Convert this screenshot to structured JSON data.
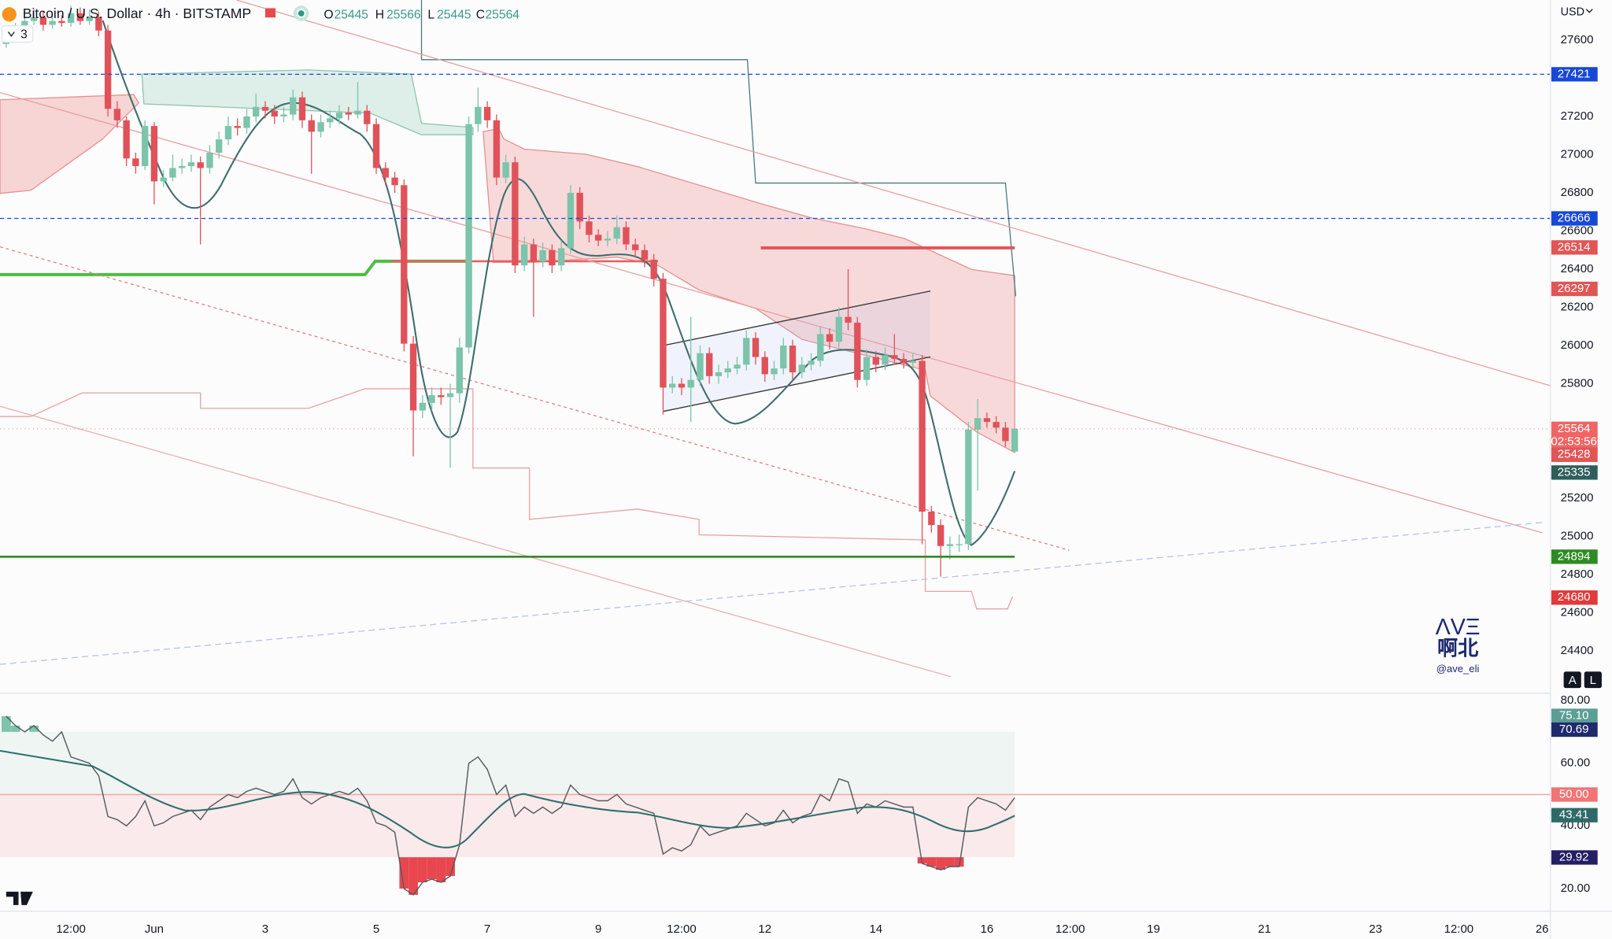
{
  "chart_data": [
    {
      "type": "candlestick",
      "title": "Bitcoin / U.S. Dollar · 4h · BITSTAMP",
      "legend": {
        "o_label": "O",
        "o": 25445,
        "h_label": "H",
        "h": 25566,
        "l_label": "L",
        "l": 25445,
        "c_label": "C",
        "c": 25564
      },
      "indicator_count": "3",
      "currency": "USD",
      "watermark": {
        "logo": "ΛVΞ",
        "name": "啊北",
        "handle": "@ave_eli"
      },
      "buttons": [
        "A",
        "L"
      ],
      "up_color": "#7cc4ab",
      "down_color": "#e0525a",
      "grid": false,
      "xlim": [
        -0.667,
        166.89
      ],
      "xticks": [
        {
          "value": 7,
          "label": "12:00"
        },
        {
          "value": 16,
          "label": "Jun"
        },
        {
          "value": 28,
          "label": "3"
        },
        {
          "value": 40,
          "label": "5"
        },
        {
          "value": 52,
          "label": "7"
        },
        {
          "value": 64,
          "label": "9"
        },
        {
          "value": 73,
          "label": "12:00"
        },
        {
          "value": 82,
          "label": "12"
        },
        {
          "value": 94,
          "label": "14"
        },
        {
          "value": 106,
          "label": "16"
        },
        {
          "value": 115,
          "label": "12:00"
        },
        {
          "value": 124,
          "label": "19"
        },
        {
          "value": 136,
          "label": "21"
        },
        {
          "value": 148,
          "label": "23"
        },
        {
          "value": 157,
          "label": "12:00"
        },
        {
          "value": 166,
          "label": "26"
        }
      ],
      "ylim": [
        24190,
        27810
      ],
      "yticks": [
        27600,
        27200,
        27000,
        26800,
        26600,
        26400,
        26200,
        26000,
        25800,
        25200,
        25000,
        24800,
        24600,
        24400
      ],
      "price_labels": [
        {
          "value": 27421,
          "color": "#1848d8",
          "line": "dashed"
        },
        {
          "value": 26666,
          "color": "#1848d8",
          "line": "dashed"
        },
        {
          "value": 26514,
          "color": "#e25555"
        },
        {
          "value": 26297,
          "color": "#e25555"
        },
        {
          "value": 25564,
          "color": "#f06464",
          "countdown": "02:53:56",
          "line": "dotted"
        },
        {
          "value": 25428,
          "color": "#e25555"
        },
        {
          "value": 25335,
          "color": "#2e5e5c"
        },
        {
          "value": 24894,
          "color": "#2e8b23",
          "line": "solid"
        },
        {
          "value": 24680,
          "color": "#e03a3a"
        }
      ],
      "open": [
        27580,
        27620,
        27650,
        27700,
        27720,
        27680,
        27700,
        27690,
        27740,
        27700,
        27720,
        27650,
        27240,
        27180,
        26980,
        26940,
        27150,
        26860,
        26880,
        26930,
        26940,
        26960,
        26930,
        27010,
        27080,
        27150,
        27140,
        27200,
        27250,
        27230,
        27200,
        27210,
        27300,
        27180,
        27120,
        27170,
        27190,
        27220,
        27210,
        27230,
        27160,
        26930,
        26880,
        26840,
        26010,
        25660,
        25700,
        25740,
        25730,
        25750,
        25990,
        27160,
        27250,
        27180,
        26880,
        26960,
        26420,
        26530,
        26440,
        26500,
        26420,
        26510,
        26800,
        26650,
        26580,
        26550,
        26560,
        26620,
        26530,
        26500,
        26450,
        26350,
        25780,
        25800,
        25780,
        25820,
        25960,
        25840,
        25860,
        25880,
        25900,
        26040,
        25940,
        25850,
        25880,
        26000,
        25860,
        25900,
        25920,
        26060,
        26020,
        26150,
        26120,
        25820,
        25940,
        25900,
        25950,
        25930,
        25910,
        25920,
        25130,
        25060,
        24950,
        24960,
        24960,
        25560,
        25620,
        25600,
        25570,
        25445
      ],
      "high": [
        27660,
        27690,
        27740,
        27760,
        27750,
        27730,
        27730,
        27780,
        27770,
        27760,
        27750,
        27680,
        27280,
        27200,
        27010,
        27180,
        27170,
        26920,
        27000,
        26980,
        27000,
        26990,
        27050,
        27120,
        27200,
        27190,
        27240,
        27320,
        27280,
        27260,
        27250,
        27340,
        27330,
        27210,
        27210,
        27230,
        27260,
        27250,
        27380,
        27260,
        27190,
        26960,
        26910,
        26870,
        26050,
        25740,
        25780,
        25780,
        25800,
        26040,
        27200,
        27350,
        27280,
        27210,
        27000,
        26990,
        26570,
        26560,
        26540,
        26530,
        26550,
        26840,
        26830,
        26680,
        26610,
        26600,
        26680,
        26650,
        26560,
        26530,
        26480,
        26380,
        25840,
        25830,
        26150,
        26000,
        25990,
        25900,
        25920,
        25940,
        26080,
        26070,
        25970,
        25920,
        26040,
        26030,
        25940,
        25960,
        26100,
        26090,
        26200,
        26400,
        26150,
        25980,
        25970,
        25990,
        26060,
        25960,
        25960,
        25950,
        25160,
        25090,
        25000,
        25010,
        25600,
        25720,
        25650,
        25630,
        25600,
        25566
      ],
      "low": [
        27560,
        27600,
        27630,
        27680,
        27650,
        27660,
        27670,
        27670,
        27680,
        27680,
        27620,
        27200,
        27140,
        26940,
        26900,
        26920,
        26740,
        26830,
        26860,
        26900,
        26910,
        26530,
        26900,
        26980,
        27050,
        27100,
        27110,
        27170,
        27190,
        27160,
        27170,
        27180,
        27140,
        26900,
        27090,
        27140,
        27160,
        27180,
        27190,
        27120,
        26900,
        26840,
        26800,
        25970,
        25420,
        25620,
        25660,
        25690,
        25360,
        25700,
        25960,
        27120,
        27140,
        26840,
        26850,
        26380,
        26390,
        26150,
        26410,
        26380,
        26390,
        26480,
        26610,
        26540,
        26520,
        26520,
        26530,
        26500,
        26460,
        26410,
        26310,
        25640,
        25750,
        25740,
        25600,
        25790,
        25800,
        25800,
        25830,
        25850,
        25870,
        25900,
        25810,
        25820,
        25850,
        25820,
        25830,
        25870,
        25890,
        25980,
        25990,
        26080,
        25780,
        25790,
        25860,
        25870,
        25900,
        25880,
        25880,
        24960,
        25020,
        24790,
        24880,
        24920,
        24930,
        25240,
        25570,
        25540,
        25470,
        25445
      ],
      "close": [
        27620,
        27650,
        27700,
        27720,
        27680,
        27700,
        27690,
        27740,
        27700,
        27720,
        27650,
        27240,
        27180,
        26980,
        26940,
        27150,
        26860,
        26880,
        26930,
        26940,
        26960,
        26930,
        27010,
        27080,
        27150,
        27140,
        27200,
        27250,
        27230,
        27200,
        27210,
        27300,
        27180,
        27120,
        27170,
        27190,
        27220,
        27210,
        27230,
        27160,
        26930,
        26880,
        26840,
        26010,
        25660,
        25700,
        25740,
        25730,
        25750,
        25990,
        27160,
        27250,
        27180,
        26880,
        26960,
        26420,
        26530,
        26440,
        26500,
        26420,
        26510,
        26800,
        26650,
        26580,
        26550,
        26560,
        26620,
        26530,
        26500,
        26450,
        26350,
        25780,
        25800,
        25780,
        25820,
        25960,
        25840,
        25860,
        25880,
        25900,
        26040,
        25940,
        25850,
        25880,
        26000,
        25860,
        25900,
        25920,
        26060,
        26020,
        26150,
        26120,
        25820,
        25940,
        25900,
        25950,
        25930,
        25910,
        25920,
        25130,
        25060,
        24950,
        24960,
        24960,
        25560,
        25620,
        25600,
        25570,
        25500,
        25564
      ]
    },
    {
      "type": "line",
      "color": "#555a60",
      "ylim": [
        13.1,
        82
      ],
      "yticks": [
        {
          "value": 80,
          "label": "80.00"
        },
        {
          "value": 60,
          "label": "60.00"
        },
        {
          "value": 40,
          "label": "40.00"
        },
        {
          "value": 20,
          "label": "20.00"
        }
      ],
      "levels": {
        "upper": 70,
        "middle": 50,
        "lower": 30
      },
      "axis_labels": {
        "values": [
          75.1,
          70.69,
          50,
          43.41,
          29.92
        ],
        "value_labels": [
          "75.10",
          "70.69",
          "50.00",
          "43.41",
          "29.92"
        ],
        "colors": [
          "#5b9e94",
          "#1f2a6b",
          "#f27474",
          "#2e6b68",
          "#241f63"
        ]
      },
      "values": [
        75,
        72,
        70,
        72,
        69,
        67,
        70,
        62,
        61,
        60,
        56,
        43,
        42,
        40,
        43,
        48,
        40,
        41,
        43,
        44,
        45,
        42,
        46,
        48,
        50,
        49,
        51,
        52,
        51,
        50,
        51,
        55,
        49,
        47,
        49,
        50,
        51,
        50,
        52,
        48,
        41,
        40,
        38,
        20,
        18,
        22,
        23,
        22,
        24,
        34,
        60,
        62,
        58,
        50,
        53,
        43,
        46,
        44,
        46,
        44,
        46,
        53,
        50,
        49,
        48,
        48,
        50,
        47,
        46,
        45,
        44,
        31,
        33,
        32,
        34,
        40,
        37,
        38,
        39,
        40,
        44,
        42,
        40,
        41,
        45,
        41,
        43,
        44,
        50,
        48,
        55,
        54,
        44,
        47,
        46,
        48,
        47,
        46,
        46,
        28,
        27,
        26,
        27,
        27,
        46,
        49,
        48,
        47,
        45,
        49
      ]
    }
  ]
}
